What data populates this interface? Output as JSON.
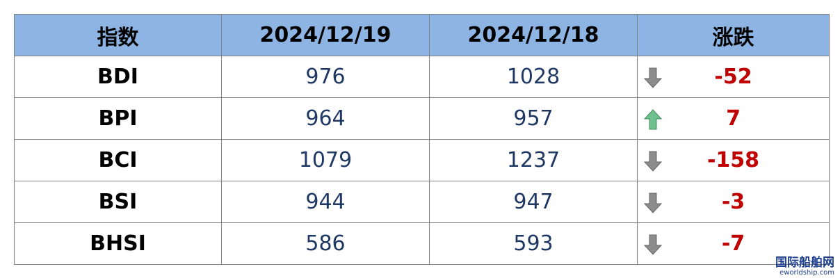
{
  "table": {
    "header": [
      "指数",
      "2024/12/19",
      "2024/12/18",
      "涨跌"
    ],
    "rows": [
      [
        "BDI",
        "976",
        "1028",
        "-52"
      ],
      [
        "BPI",
        "964",
        "957",
        "7"
      ],
      [
        "BCI",
        "1079",
        "1237",
        "-158"
      ],
      [
        "BSI",
        "944",
        "947",
        "-3"
      ],
      [
        "BHSI",
        "586",
        "593",
        "-7"
      ]
    ]
  },
  "watermark": {
    "name": "国际船舶网",
    "url": "eworldship.com"
  }
}
